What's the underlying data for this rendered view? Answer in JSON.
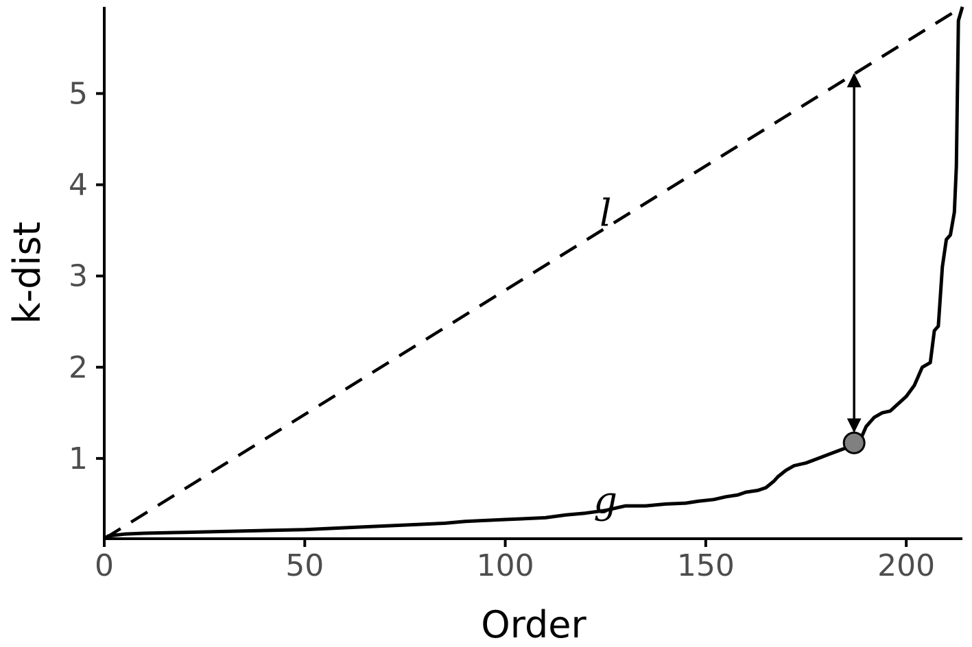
{
  "chart_data": {
    "type": "line",
    "title": "",
    "xlabel": "Order",
    "ylabel": "k-dist",
    "xlim": [
      0,
      214
    ],
    "ylim": [
      0.12,
      5.95
    ],
    "x_ticks": [
      0,
      50,
      100,
      150,
      200
    ],
    "y_ticks": [
      1,
      2,
      3,
      4,
      5
    ],
    "grid": false,
    "legend": "none",
    "series": [
      {
        "style": "solid",
        "color": "#000000",
        "points": [
          [
            0,
            0.12
          ],
          [
            1,
            0.15
          ],
          [
            5,
            0.17
          ],
          [
            10,
            0.18
          ],
          [
            20,
            0.19
          ],
          [
            30,
            0.2
          ],
          [
            40,
            0.21
          ],
          [
            50,
            0.22
          ],
          [
            60,
            0.24
          ],
          [
            70,
            0.26
          ],
          [
            80,
            0.28
          ],
          [
            85,
            0.29
          ],
          [
            90,
            0.31
          ],
          [
            100,
            0.33
          ],
          [
            110,
            0.35
          ],
          [
            115,
            0.38
          ],
          [
            120,
            0.4
          ],
          [
            125,
            0.43
          ],
          [
            128,
            0.46
          ],
          [
            130,
            0.48
          ],
          [
            135,
            0.48
          ],
          [
            140,
            0.5
          ],
          [
            145,
            0.51
          ],
          [
            148,
            0.53
          ],
          [
            152,
            0.55
          ],
          [
            155,
            0.58
          ],
          [
            158,
            0.6
          ],
          [
            160,
            0.63
          ],
          [
            163,
            0.65
          ],
          [
            165,
            0.68
          ],
          [
            167,
            0.75
          ],
          [
            168,
            0.8
          ],
          [
            170,
            0.87
          ],
          [
            172,
            0.92
          ],
          [
            175,
            0.95
          ],
          [
            178,
            1.0
          ],
          [
            181,
            1.05
          ],
          [
            184,
            1.1
          ],
          [
            186,
            1.13
          ],
          [
            187,
            1.17
          ],
          [
            189,
            1.25
          ],
          [
            190,
            1.35
          ],
          [
            192,
            1.45
          ],
          [
            194,
            1.5
          ],
          [
            196,
            1.52
          ],
          [
            198,
            1.6
          ],
          [
            200,
            1.68
          ],
          [
            202,
            1.8
          ],
          [
            203,
            1.9
          ],
          [
            204,
            2.0
          ],
          [
            206,
            2.05
          ],
          [
            207,
            2.4
          ],
          [
            208,
            2.45
          ],
          [
            209,
            3.1
          ],
          [
            210,
            3.4
          ],
          [
            211,
            3.45
          ],
          [
            212,
            3.7
          ],
          [
            212.5,
            4.2
          ],
          [
            213,
            5.8
          ],
          [
            214,
            5.95
          ]
        ]
      },
      {
        "style": "dashed",
        "color": "#000000",
        "points": [
          [
            0,
            0.12
          ],
          [
            214,
            5.95
          ]
        ]
      }
    ],
    "marker": {
      "x": 187,
      "y": 1.17,
      "color": "#808080"
    },
    "arrow": {
      "x": 187,
      "y_from": 1.17,
      "y_to": 5.21
    },
    "annotations": [
      {
        "text": "l",
        "x": 125,
        "y": 3.55
      },
      {
        "text": "g",
        "x": 125,
        "y": 0.4
      }
    ]
  }
}
